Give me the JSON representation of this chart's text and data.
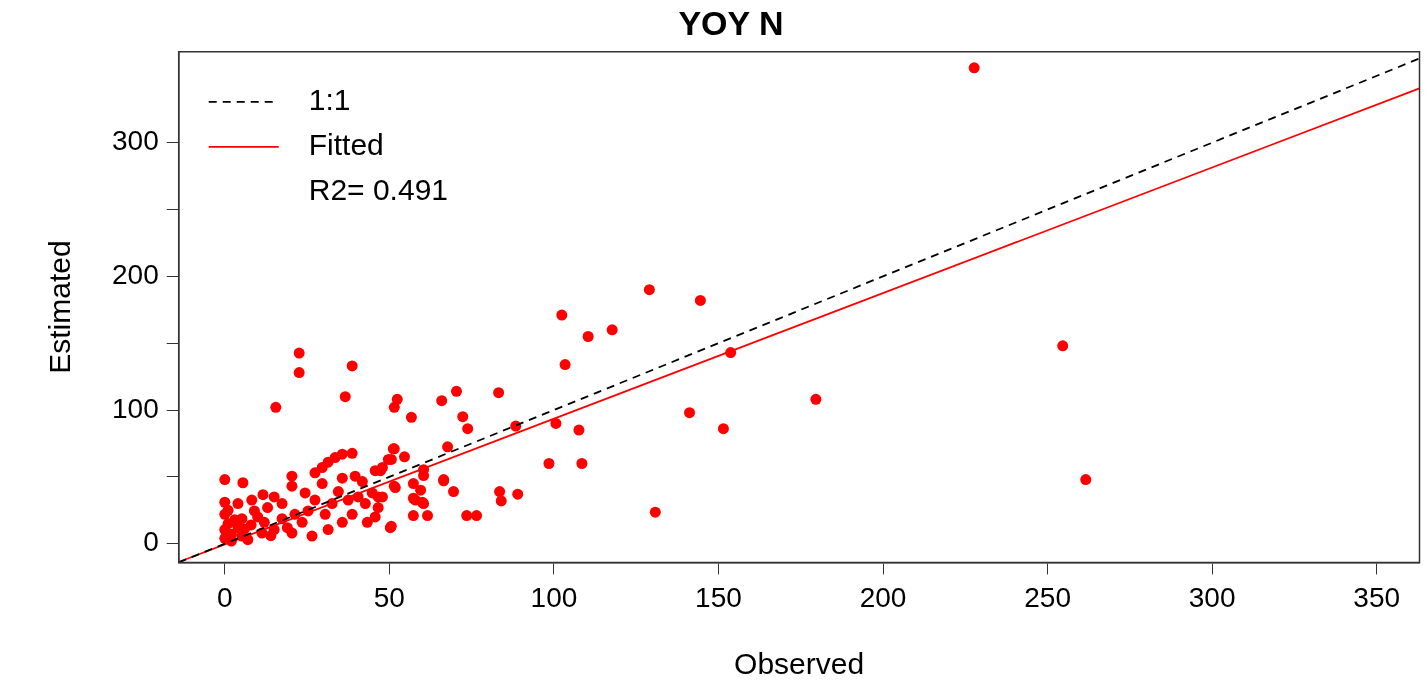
{
  "chart_data": {
    "type": "scatter",
    "title": "YOY N",
    "xlabel": "Observed",
    "ylabel": "Estimated",
    "xlim": [
      -14,
      363
    ],
    "ylim": [
      -14,
      368
    ],
    "xticks": [
      0,
      50,
      100,
      150,
      200,
      250,
      300,
      350
    ],
    "yticks": [
      0,
      {
        "value": 50,
        "label": null
      },
      100,
      {
        "value": 150,
        "label": null
      },
      200,
      {
        "value": 250,
        "label": null
      },
      300
    ],
    "grid": false,
    "legend": "top left",
    "marker": "circle",
    "annotations": [
      "R2= 0.491"
    ],
    "series": [
      {
        "color": "#ff0000",
        "x": [
          227.7,
          254.6,
          261.6,
          179.6,
          129,
          144.5,
          102.4,
          117.7,
          110.4,
          103.4,
          153.7,
          141.2,
          151.5,
          130.8,
          100.6,
          107.6,
          108.5,
          98.5,
          88.4,
          83.2,
          70.4,
          65.9,
          72.3,
          73.8,
          67.7,
          66.5,
          69.5,
          89,
          83.5,
          84,
          73.5,
          76.5,
          50.3,
          52.4,
          51.5,
          56.7,
          51.5,
          50.6,
          54.6,
          60.4,
          60.4,
          47.3,
          51.5,
          57.3,
          59.5,
          57.3,
          60.4,
          57.3,
          61.6,
          50.6,
          46.6,
          22.6,
          22.6,
          15.5,
          38.7,
          36.6,
          0,
          5.5,
          0,
          11.6,
          15,
          20.4,
          20.4,
          27.4,
          29.6,
          31.4,
          33.5,
          35.7,
          38.7,
          29.6,
          35.7,
          39.6,
          34.5,
          41.8,
          45.7,
          47.9,
          49.7,
          51.2,
          51.8,
          57.9,
          60,
          66.5,
          42.7,
          38.7,
          35.7,
          31.4,
          26.5,
          23.5,
          20.4,
          15,
          11.3,
          5.2,
          0,
          0,
          0,
          5.2,
          9,
          13,
          17.4,
          21.3,
          25.3,
          27.4,
          32.6,
          37.5,
          40.5,
          44.8,
          46.6,
          8.2,
          4,
          12,
          17.4,
          24.4,
          30.5,
          43.3,
          45.7,
          47.9,
          1,
          2,
          4,
          8,
          10,
          2,
          7,
          14,
          19,
          1,
          3,
          6
        ],
        "values": [
          356,
          148,
          48,
          108,
          190,
          182,
          171,
          160,
          155,
          134,
          143,
          98,
          86,
          23.6,
          90,
          85,
          60,
          60,
          88,
          113,
          114,
          107,
          95,
          86,
          72.5,
          48,
          39,
          37,
          39,
          32,
          21,
          21,
          12,
          108,
          102,
          94.5,
          71,
          63,
          65,
          55.4,
          51,
          54.6,
          43,
          45,
          40,
          34,
          30,
          21,
          21,
          13,
          35,
          142.6,
          128,
          102,
          133,
          110,
          48,
          45.6,
          31,
          36.7,
          35,
          50.5,
          43,
          53,
          57,
          61,
          64.4,
          67,
          67.6,
          45,
          49,
          50.5,
          39,
          46.5,
          54.6,
          57,
          63,
          71,
          42,
          32.6,
          31,
          47,
          30,
          22,
          16,
          10.6,
          5.7,
          16,
          8,
          10.6,
          8,
          5.7,
          4,
          10.6,
          22,
          18.7,
          24.5,
          27,
          30,
          22,
          24.5,
          32.6,
          30,
          32.6,
          35,
          38,
          27,
          32.6,
          30,
          16,
          18.7,
          38,
          22,
          16,
          20,
          35,
          15,
          7,
          12,
          14,
          20,
          2,
          3,
          6,
          12,
          25,
          18,
          11
        ]
      },
      {
        "type": "line",
        "name": "1:1",
        "color": "#000000",
        "line_style": "dashed",
        "marker": "none",
        "x": [
          -14,
          363
        ],
        "values": [
          -14,
          363
        ]
      },
      {
        "type": "line",
        "name": "Fitted",
        "color": "#ff0000",
        "line_style": "solid",
        "marker": "none",
        "x": [
          -14,
          363
        ],
        "values": [
          -13.7,
          340.7
        ]
      }
    ]
  }
}
